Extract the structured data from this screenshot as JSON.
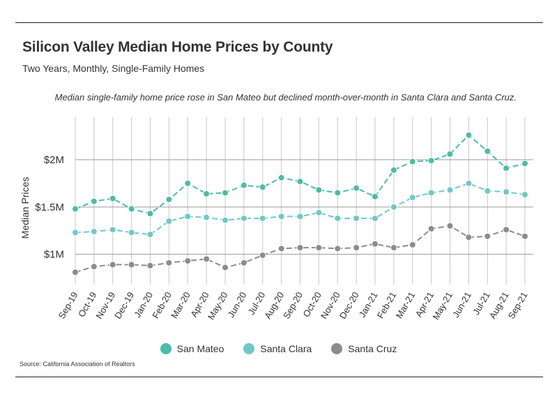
{
  "chart_data": {
    "type": "line",
    "title": "Silicon Valley Median Home Prices by County",
    "subtitle": "Two Years, Monthly, Single-Family Homes",
    "annotation": "Median single-family home price rose in San Mateo but declined month-over-month in Santa Clara and Santa Cruz.",
    "xlabel": "",
    "ylabel": "Median Prices",
    "ylim": [
      0.68,
      2.45
    ],
    "yticks": [
      {
        "value": 1.0,
        "label": "$1M"
      },
      {
        "value": 1.5,
        "label": "$1.5M"
      },
      {
        "value": 2.0,
        "label": "$2M"
      }
    ],
    "categories": [
      "Sep-19",
      "Oct-19",
      "Nov-19",
      "Dec-19",
      "Jan-20",
      "Feb-20",
      "Mar-20",
      "Apr-20",
      "May-20",
      "Jun-20",
      "Jul-20",
      "Aug-20",
      "Sep-20",
      "Oct-20",
      "Nov-20",
      "Dec-20",
      "Jan-21",
      "Feb-21",
      "Mar-21",
      "Apr-21",
      "May-21",
      "Jun-21",
      "Jul-21",
      "Aug-21",
      "Sep-21"
    ],
    "series": [
      {
        "name": "San Mateo",
        "color": "#4dbba8",
        "values": [
          1.48,
          1.56,
          1.59,
          1.48,
          1.43,
          1.58,
          1.75,
          1.64,
          1.65,
          1.73,
          1.71,
          1.81,
          1.77,
          1.68,
          1.65,
          1.7,
          1.61,
          1.89,
          1.98,
          1.99,
          2.06,
          2.26,
          2.09,
          1.91,
          1.96
        ]
      },
      {
        "name": "Santa Clara",
        "color": "#72c7c7",
        "values": [
          1.23,
          1.24,
          1.26,
          1.23,
          1.21,
          1.35,
          1.4,
          1.39,
          1.36,
          1.38,
          1.38,
          1.4,
          1.4,
          1.44,
          1.38,
          1.38,
          1.38,
          1.5,
          1.6,
          1.65,
          1.68,
          1.75,
          1.67,
          1.66,
          1.63
        ]
      },
      {
        "name": "Santa Cruz",
        "color": "#8c8c8c",
        "values": [
          0.81,
          0.87,
          0.89,
          0.89,
          0.88,
          0.91,
          0.93,
          0.95,
          0.86,
          0.91,
          0.99,
          1.06,
          1.07,
          1.07,
          1.06,
          1.07,
          1.11,
          1.07,
          1.1,
          1.27,
          1.3,
          1.18,
          1.19,
          1.26,
          1.19
        ]
      }
    ],
    "legend_position": "bottom-center",
    "grid": true
  },
  "source": "Source:  California Association of Realtors"
}
